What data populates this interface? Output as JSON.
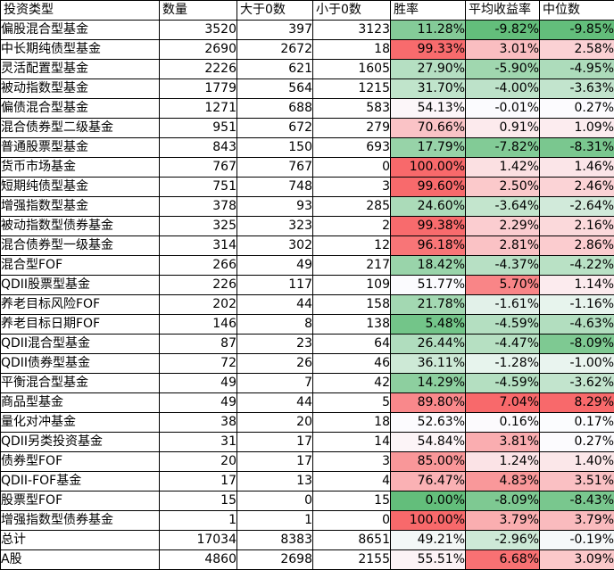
{
  "colors": {
    "scale_green": "#63BE7B",
    "scale_white": "#FCFCFF",
    "scale_red": "#F8696B",
    "grid_border": "#000000",
    "text": "#000000",
    "background": "#FFFFFF"
  },
  "table": {
    "columns": [
      {
        "key": "type",
        "label": "投资类型",
        "align": "left"
      },
      {
        "key": "count",
        "label": "数量",
        "align": "right"
      },
      {
        "key": "gt0",
        "label": "大于0数",
        "align": "right"
      },
      {
        "key": "lt0",
        "label": "小于0数",
        "align": "right"
      },
      {
        "key": "win_rate",
        "label": "胜率",
        "align": "right"
      },
      {
        "key": "avg_return",
        "label": "平均收益率",
        "align": "right"
      },
      {
        "key": "median",
        "label": "中位数",
        "align": "right"
      }
    ],
    "conditional_columns": [
      "win_rate",
      "avg_return",
      "median"
    ],
    "rows": [
      {
        "type": "偏股混合型基金",
        "count": "3520",
        "gt0": "397",
        "lt0": "3123",
        "win_rate": "11.28%",
        "avg_return": "-9.82%",
        "median": "-9.85%"
      },
      {
        "type": "中长期纯债型基金",
        "count": "2690",
        "gt0": "2672",
        "lt0": "18",
        "win_rate": "99.33%",
        "avg_return": "3.01%",
        "median": "2.58%"
      },
      {
        "type": "灵活配置型基金",
        "count": "2226",
        "gt0": "621",
        "lt0": "1605",
        "win_rate": "27.90%",
        "avg_return": "-5.90%",
        "median": "-4.95%"
      },
      {
        "type": "被动指数型基金",
        "count": "1779",
        "gt0": "564",
        "lt0": "1215",
        "win_rate": "31.70%",
        "avg_return": "-4.00%",
        "median": "-3.63%"
      },
      {
        "type": "偏债混合型基金",
        "count": "1271",
        "gt0": "688",
        "lt0": "583",
        "win_rate": "54.13%",
        "avg_return": "-0.01%",
        "median": "0.27%"
      },
      {
        "type": "混合债券型二级基金",
        "count": "951",
        "gt0": "672",
        "lt0": "279",
        "win_rate": "70.66%",
        "avg_return": "0.91%",
        "median": "1.09%"
      },
      {
        "type": "普通股票型基金",
        "count": "843",
        "gt0": "150",
        "lt0": "693",
        "win_rate": "17.79%",
        "avg_return": "-7.82%",
        "median": "-8.31%"
      },
      {
        "type": "货币市场基金",
        "count": "767",
        "gt0": "767",
        "lt0": "0",
        "win_rate": "100.00%",
        "avg_return": "1.42%",
        "median": "1.46%"
      },
      {
        "type": "短期纯债型基金",
        "count": "751",
        "gt0": "748",
        "lt0": "3",
        "win_rate": "99.60%",
        "avg_return": "2.50%",
        "median": "2.46%"
      },
      {
        "type": "增强指数型基金",
        "count": "378",
        "gt0": "93",
        "lt0": "285",
        "win_rate": "24.60%",
        "avg_return": "-3.64%",
        "median": "-2.64%"
      },
      {
        "type": "被动指数型债券基金",
        "count": "325",
        "gt0": "323",
        "lt0": "2",
        "win_rate": "99.38%",
        "avg_return": "2.29%",
        "median": "2.16%"
      },
      {
        "type": "混合债券型一级基金",
        "count": "314",
        "gt0": "302",
        "lt0": "12",
        "win_rate": "96.18%",
        "avg_return": "2.81%",
        "median": "2.86%"
      },
      {
        "type": "混合型FOF",
        "count": "266",
        "gt0": "49",
        "lt0": "217",
        "win_rate": "18.42%",
        "avg_return": "-4.37%",
        "median": "-4.22%"
      },
      {
        "type": "QDII股票型基金",
        "count": "226",
        "gt0": "117",
        "lt0": "109",
        "win_rate": "51.77%",
        "avg_return": "5.70%",
        "median": "1.14%"
      },
      {
        "type": "养老目标风险FOF",
        "count": "202",
        "gt0": "44",
        "lt0": "158",
        "win_rate": "21.78%",
        "avg_return": "-1.61%",
        "median": "-1.16%"
      },
      {
        "type": "养老目标日期FOF",
        "count": "146",
        "gt0": "8",
        "lt0": "138",
        "win_rate": "5.48%",
        "avg_return": "-4.59%",
        "median": "-4.63%"
      },
      {
        "type": "QDII混合型基金",
        "count": "87",
        "gt0": "23",
        "lt0": "64",
        "win_rate": "26.44%",
        "avg_return": "-4.47%",
        "median": "-8.09%"
      },
      {
        "type": "QDII债券型基金",
        "count": "72",
        "gt0": "26",
        "lt0": "46",
        "win_rate": "36.11%",
        "avg_return": "-1.28%",
        "median": "-1.00%"
      },
      {
        "type": "平衡混合型基金",
        "count": "49",
        "gt0": "7",
        "lt0": "42",
        "win_rate": "14.29%",
        "avg_return": "-4.59%",
        "median": "-3.62%"
      },
      {
        "type": "商品型基金",
        "count": "49",
        "gt0": "44",
        "lt0": "5",
        "win_rate": "89.80%",
        "avg_return": "7.04%",
        "median": "8.29%"
      },
      {
        "type": "量化对冲基金",
        "count": "38",
        "gt0": "20",
        "lt0": "18",
        "win_rate": "52.63%",
        "avg_return": "0.16%",
        "median": "0.17%"
      },
      {
        "type": "QDII另类投资基金",
        "count": "31",
        "gt0": "17",
        "lt0": "14",
        "win_rate": "54.84%",
        "avg_return": "3.81%",
        "median": "0.27%"
      },
      {
        "type": "债券型FOF",
        "count": "20",
        "gt0": "17",
        "lt0": "3",
        "win_rate": "85.00%",
        "avg_return": "1.24%",
        "median": "1.40%"
      },
      {
        "type": "QDII-FOF基金",
        "count": "17",
        "gt0": "13",
        "lt0": "4",
        "win_rate": "76.47%",
        "avg_return": "4.83%",
        "median": "3.51%"
      },
      {
        "type": "股票型FOF",
        "count": "15",
        "gt0": "0",
        "lt0": "15",
        "win_rate": "0.00%",
        "avg_return": "-8.09%",
        "median": "-8.43%"
      },
      {
        "type": "增强指数型债券基金",
        "count": "1",
        "gt0": "1",
        "lt0": "0",
        "win_rate": "100.00%",
        "avg_return": "3.79%",
        "median": "3.79%"
      },
      {
        "type": "总计",
        "count": "17034",
        "gt0": "8383",
        "lt0": "8651",
        "win_rate": "49.21%",
        "avg_return": "-2.96%",
        "median": "-0.19%"
      },
      {
        "type": "A股",
        "count": "4860",
        "gt0": "2698",
        "lt0": "2155",
        "win_rate": "55.51%",
        "avg_return": "6.68%",
        "median": "3.09%"
      }
    ]
  }
}
